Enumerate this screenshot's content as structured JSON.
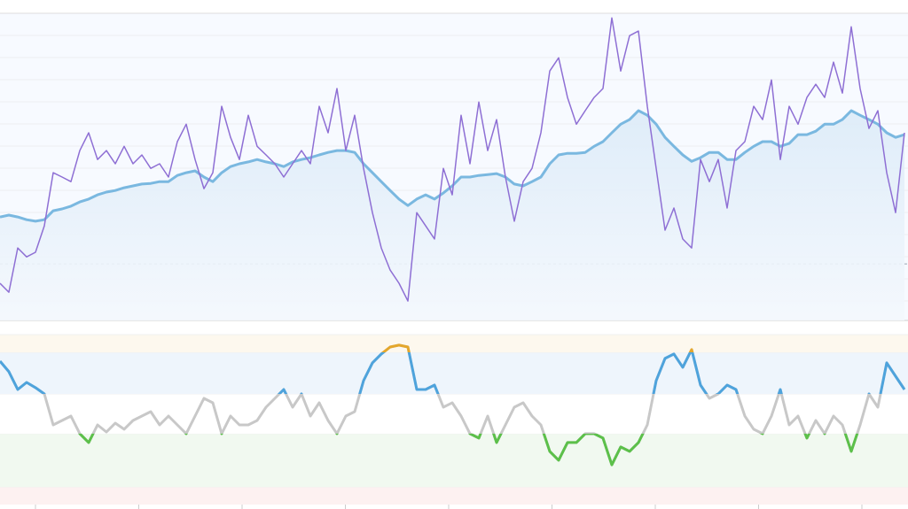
{
  "chart_data": [
    {
      "type": "line",
      "ylim": [
        0,
        100
      ],
      "reference": 18.4,
      "series": [
        {
          "color": "#8e6fd4",
          "values": [
            12.1,
            9.2,
            23.6,
            20.7,
            22.2,
            30.8,
            48.1,
            46.7,
            45.2,
            55.3,
            61.1,
            52.4,
            55.3,
            51.0,
            56.7,
            51.0,
            53.9,
            49.5,
            51.0,
            46.7,
            58.2,
            63.9,
            52.4,
            42.9,
            48.1,
            69.7,
            59.6,
            52.4,
            66.8,
            56.7,
            53.9,
            51.0,
            46.7,
            51.0,
            55.3,
            51.0,
            69.7,
            61.1,
            75.5,
            55.3,
            66.8,
            49.5,
            35.1,
            23.6,
            16.4,
            12.1,
            6.3,
            35.1,
            30.8,
            26.5,
            49.5,
            40.9,
            66.8,
            51.0,
            71.1,
            55.3,
            65.4,
            46.7,
            32.3,
            45.2,
            49.5,
            61.1,
            81.2,
            85.5,
            72.6,
            63.9,
            68.3,
            72.6,
            75.5,
            98.5,
            81.2,
            92.7,
            94.2,
            69.7,
            49.5,
            29.4,
            36.6,
            26.5,
            23.6,
            52.4,
            45.2,
            52.4,
            36.6,
            55.3,
            58.2,
            69.7,
            65.4,
            78.3,
            52.4,
            69.7,
            63.9,
            72.6,
            76.9,
            72.6,
            84.1,
            74.0,
            95.6,
            75.5,
            62.5,
            68.3,
            48.1,
            35.1,
            61.1
          ]
        },
        {
          "color": "#7ab8e0",
          "area": true,
          "values": [
            33.7,
            34.3,
            33.7,
            32.8,
            32.3,
            32.8,
            35.7,
            36.3,
            37.2,
            38.6,
            39.5,
            40.9,
            41.8,
            42.3,
            43.2,
            43.8,
            44.4,
            44.6,
            45.2,
            45.2,
            47.2,
            48.1,
            48.7,
            46.7,
            45.2,
            48.1,
            50.1,
            51.0,
            51.6,
            52.4,
            51.6,
            51.0,
            50.1,
            51.6,
            52.4,
            53.0,
            53.9,
            54.7,
            55.3,
            55.3,
            54.7,
            51.0,
            48.1,
            45.2,
            42.3,
            39.5,
            37.4,
            39.5,
            40.9,
            39.5,
            41.5,
            43.8,
            46.7,
            46.7,
            47.2,
            47.5,
            47.8,
            46.7,
            44.4,
            43.8,
            45.2,
            46.7,
            51.0,
            53.9,
            54.4,
            54.4,
            54.7,
            56.7,
            58.2,
            61.1,
            63.9,
            65.4,
            68.3,
            66.8,
            63.9,
            59.6,
            56.7,
            53.9,
            51.8,
            53.0,
            54.7,
            54.7,
            52.4,
            52.4,
            54.7,
            56.7,
            58.2,
            58.2,
            56.7,
            57.6,
            60.5,
            60.5,
            61.6,
            63.9,
            63.9,
            65.4,
            68.3,
            66.8,
            65.4,
            63.9,
            61.1,
            59.6,
            60.5
          ]
        }
      ]
    },
    {
      "type": "zoned-line",
      "ylim": [
        0,
        100
      ],
      "zones": [
        {
          "from": 0,
          "to": 10.4,
          "line": "#5cc04a",
          "band": "#fdf1f1"
        },
        {
          "from": 10.4,
          "to": 41.7,
          "line": "#5cc04a",
          "band": "#f1f9f0"
        },
        {
          "from": 41.7,
          "to": 65.1,
          "line": "#c8c8c8",
          "band": "#ffffff"
        },
        {
          "from": 65.1,
          "to": 89.6,
          "line": "#4ea3dc",
          "band": "#eef5fc"
        },
        {
          "from": 89.6,
          "to": 100,
          "line": "#e4a72c",
          "band": "#fdf8ee"
        }
      ],
      "series": [
        {
          "color": "#c8c8c8",
          "values": [
            84.4,
            78.2,
            67.7,
            71.9,
            68.8,
            65.1,
            46.9,
            49.5,
            52.1,
            41.7,
            36.5,
            46.9,
            42.7,
            47.9,
            44.3,
            49.5,
            52.1,
            54.7,
            46.9,
            52.1,
            46.9,
            41.7,
            52.1,
            62.5,
            59.9,
            41.7,
            52.1,
            46.9,
            46.9,
            49.5,
            57.3,
            62.5,
            67.7,
            57.3,
            65.1,
            52.1,
            59.9,
            49.5,
            41.7,
            52.1,
            54.7,
            72.9,
            83.4,
            88.6,
            92.7,
            93.8,
            92.7,
            67.7,
            67.7,
            70.3,
            57.3,
            59.9,
            52.1,
            41.7,
            39.1,
            52.1,
            36.5,
            46.9,
            57.3,
            59.9,
            52.1,
            46.9,
            31.3,
            26.1,
            36.5,
            36.5,
            41.7,
            41.7,
            39.1,
            23.4,
            33.9,
            31.3,
            36.5,
            46.9,
            72.9,
            86.0,
            88.6,
            80.8,
            91.2,
            70.3,
            62.5,
            65.1,
            70.3,
            67.7,
            52.1,
            44.3,
            41.7,
            52.1,
            67.7,
            46.9,
            52.1,
            39.1,
            49.5,
            41.7,
            52.1,
            46.9,
            31.3,
            46.9,
            65.1,
            57.3,
            83.4,
            75.5,
            67.7
          ]
        }
      ]
    }
  ]
}
